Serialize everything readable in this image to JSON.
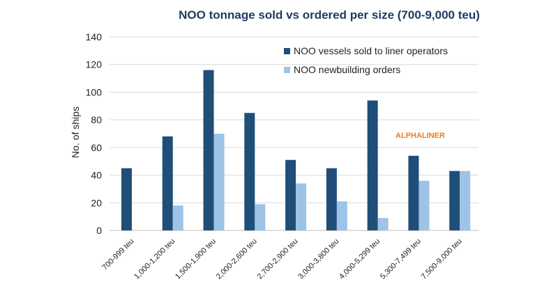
{
  "chart_data": {
    "type": "bar",
    "title": "NOO tonnage sold vs ordered per size (700-9,000 teu)",
    "xlabel": "",
    "ylabel": "No. of ships",
    "ylim": [
      0,
      140
    ],
    "yticks": [
      0,
      20,
      40,
      60,
      80,
      100,
      120,
      140
    ],
    "grid": true,
    "legend_position": "top-right",
    "categories": [
      "700-999 teu",
      "1,000-1,200 teu",
      "1,500-1,900 teu",
      "2,000-2,600 teu",
      "2,700-2,900 teu",
      "3,000-3,800 teu",
      "4,000-5,299 teu",
      "5,300-7,499 teu",
      "7,500-9,000 teu"
    ],
    "series": [
      {
        "name": "NOO vessels sold to liner operators",
        "color": "#1f4e79",
        "values": [
          45,
          68,
          116,
          85,
          51,
          45,
          94,
          54,
          43
        ]
      },
      {
        "name": "NOO newbuilding orders",
        "color": "#9dc3e6",
        "values": [
          0,
          18,
          70,
          19,
          34,
          21,
          9,
          36,
          43
        ]
      }
    ],
    "watermark": "ALPHALINER"
  },
  "colors": {
    "title": "#1f3b63",
    "grid": "#d9d9d9",
    "watermark": "#f07c1a"
  }
}
